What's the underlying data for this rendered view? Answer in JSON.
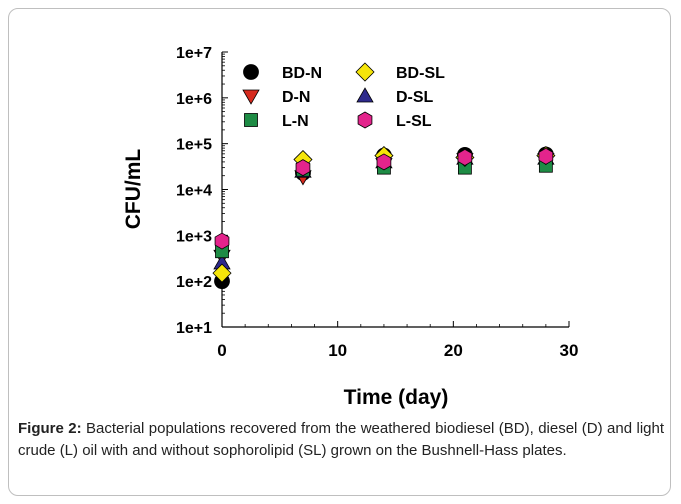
{
  "chart_data": {
    "type": "scatter",
    "xlabel": "Time (day)",
    "ylabel": "CFU/mL",
    "xlim": [
      0,
      30
    ],
    "ylim": [
      10,
      10000000
    ],
    "yscale": "log",
    "grid": false,
    "legend_placement": "top-left",
    "x_ticks": [
      "0",
      "10",
      "20",
      "30"
    ],
    "y_ticks": [
      "1e+1",
      "1e+2",
      "1e+3",
      "1e+4",
      "1e+5",
      "1e+6",
      "1e+7"
    ],
    "series": [
      {
        "name": "BD-N",
        "marker": "circle",
        "color": "#000000",
        "x": [
          0,
          7,
          14,
          21,
          28
        ],
        "y": [
          100,
          23000,
          55000,
          57000,
          58000
        ]
      },
      {
        "name": "BD-SL",
        "marker": "diamond",
        "color": "#f5e50a",
        "x": [
          0,
          7,
          14,
          21,
          28
        ],
        "y": [
          150,
          45000,
          55000,
          50000,
          55000
        ]
      },
      {
        "name": "D-N",
        "marker": "triangle-down",
        "color": "#d62a1e",
        "x": [
          0,
          7,
          14,
          21,
          28
        ],
        "y": [
          350,
          19000,
          35000,
          45000,
          45000
        ]
      },
      {
        "name": "D-SL",
        "marker": "triangle-up",
        "color": "#2e2a8c",
        "x": [
          0,
          7,
          14,
          21,
          28
        ],
        "y": [
          250,
          25000,
          40000,
          48000,
          48000
        ]
      },
      {
        "name": "L-N",
        "marker": "square",
        "color": "#1e8c45",
        "x": [
          0,
          7,
          14,
          21,
          28
        ],
        "y": [
          450,
          27000,
          30000,
          30000,
          33000
        ]
      },
      {
        "name": "L-SL",
        "marker": "hexagon",
        "color": "#e3248c",
        "x": [
          0,
          7,
          14,
          21,
          28
        ],
        "y": [
          750,
          30000,
          40000,
          50000,
          53000
        ]
      }
    ]
  },
  "caption": {
    "label": "Figure 2:",
    "text": " Bacterial populations recovered from the weathered biodiesel (BD), diesel (D) and light crude (L) oil with and without sophorolipid (SL) grown on the Bushnell-Hass plates."
  }
}
